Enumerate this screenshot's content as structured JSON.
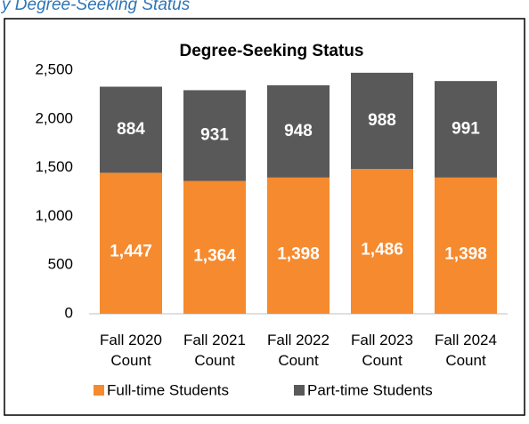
{
  "header": {
    "caption": "y Degree-Seeking Status"
  },
  "chart_data": {
    "type": "stacked-bar",
    "title": "Degree-Seeking Status",
    "categories": [
      "Fall 2020 Count",
      "Fall 2021 Count",
      "Fall 2022 Count",
      "Fall 2023 Count",
      "Fall 2024 Count"
    ],
    "series": [
      {
        "name": "Full-time Students",
        "color": "#f58a2f",
        "values": [
          1447,
          1364,
          1398,
          1486,
          1398
        ],
        "value_labels": [
          "1,447",
          "1,364",
          "1,398",
          "1,486",
          "1,398"
        ]
      },
      {
        "name": "Part-time Students",
        "color": "#595959",
        "values": [
          884,
          931,
          948,
          988,
          991
        ],
        "value_labels": [
          "884",
          "931",
          "948",
          "988",
          "991"
        ]
      }
    ],
    "ylim": [
      0,
      2500
    ],
    "yticks": [
      0,
      500,
      {
        "value": 1000,
        "label": "1,000"
      },
      {
        "value": 1500,
        "label": "1,500"
      },
      {
        "value": 2000,
        "label": "2,000"
      },
      {
        "value": 2500,
        "label": "2,500"
      }
    ],
    "legend": "bottom"
  }
}
